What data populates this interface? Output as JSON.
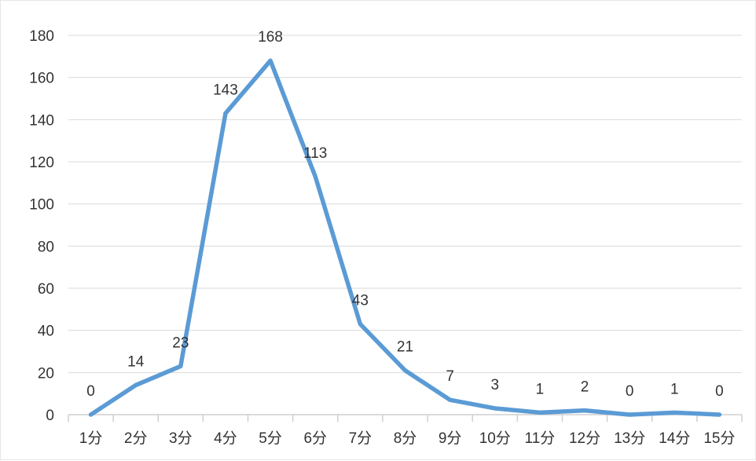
{
  "chart_data": {
    "type": "line",
    "title": "",
    "xlabel": "",
    "ylabel": "",
    "categories": [
      "1分",
      "2分",
      "3分",
      "4分",
      "5分",
      "6分",
      "7分",
      "8分",
      "9分",
      "10分",
      "11分",
      "12分",
      "13分",
      "14分",
      "15分"
    ],
    "series": [
      {
        "values": [
          0,
          14,
          23,
          143,
          168,
          113,
          43,
          21,
          7,
          3,
          1,
          2,
          0,
          1,
          0
        ],
        "color": "#5b9bd5"
      }
    ],
    "ylim": [
      0,
      180
    ],
    "yticks": [
      0,
      20,
      40,
      60,
      80,
      100,
      120,
      140,
      160,
      180
    ],
    "grid": true,
    "data_labels": true,
    "legend": "none"
  }
}
